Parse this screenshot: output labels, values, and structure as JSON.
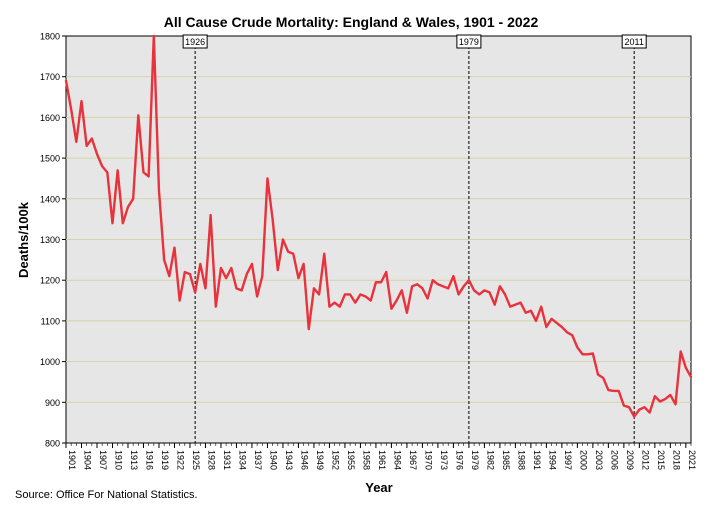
{
  "chart_data": {
    "type": "line",
    "title": "All Cause Crude Mortality: England & Wales, 1901 - 2022",
    "xlabel": "Year",
    "ylabel": "Deaths/100k",
    "source": "Source: Office For National Statistics.",
    "xlim": [
      1901,
      2022
    ],
    "ylim": [
      800,
      1800
    ],
    "y_ticks": [
      800,
      900,
      1000,
      1100,
      1200,
      1300,
      1400,
      1500,
      1600,
      1700,
      1800
    ],
    "x_ticks": [
      1901,
      1904,
      1907,
      1910,
      1913,
      1916,
      1919,
      1922,
      1925,
      1928,
      1931,
      1934,
      1937,
      1940,
      1943,
      1946,
      1949,
      1952,
      1955,
      1958,
      1961,
      1964,
      1967,
      1970,
      1973,
      1976,
      1979,
      1982,
      1985,
      1988,
      1991,
      1994,
      1997,
      2000,
      2003,
      2006,
      2009,
      2012,
      2015,
      2018,
      2021
    ],
    "markers": [
      {
        "year": 1926,
        "label": "1926"
      },
      {
        "year": 1979,
        "label": "1979"
      },
      {
        "year": 2011,
        "label": "2011"
      }
    ],
    "grid": true,
    "line_color": "#e8323c",
    "series": [
      {
        "name": "All cause crude mortality",
        "x": [
          1901,
          1902,
          1903,
          1904,
          1905,
          1906,
          1907,
          1908,
          1909,
          1910,
          1911,
          1912,
          1913,
          1914,
          1915,
          1916,
          1917,
          1918,
          1919,
          1920,
          1921,
          1922,
          1923,
          1924,
          1925,
          1926,
          1927,
          1928,
          1929,
          1930,
          1931,
          1932,
          1933,
          1934,
          1935,
          1936,
          1937,
          1938,
          1939,
          1940,
          1941,
          1942,
          1943,
          1944,
          1945,
          1946,
          1947,
          1948,
          1949,
          1950,
          1951,
          1952,
          1953,
          1954,
          1955,
          1956,
          1957,
          1958,
          1959,
          1960,
          1961,
          1962,
          1963,
          1964,
          1965,
          1966,
          1967,
          1968,
          1969,
          1970,
          1971,
          1972,
          1973,
          1974,
          1975,
          1976,
          1977,
          1978,
          1979,
          1980,
          1981,
          1982,
          1983,
          1984,
          1985,
          1986,
          1987,
          1988,
          1989,
          1990,
          1991,
          1992,
          1993,
          1994,
          1995,
          1996,
          1997,
          1998,
          1999,
          2000,
          2001,
          2002,
          2003,
          2004,
          2005,
          2006,
          2007,
          2008,
          2009,
          2010,
          2011,
          2012,
          2013,
          2014,
          2015,
          2016,
          2017,
          2018,
          2019,
          2020,
          2021,
          2022
        ],
        "values": [
          1690,
          1620,
          1540,
          1640,
          1530,
          1548,
          1510,
          1480,
          1465,
          1340,
          1470,
          1340,
          1380,
          1400,
          1605,
          1465,
          1455,
          1820,
          1420,
          1250,
          1210,
          1280,
          1150,
          1220,
          1215,
          1170,
          1240,
          1180,
          1360,
          1135,
          1230,
          1205,
          1230,
          1180,
          1175,
          1215,
          1240,
          1160,
          1210,
          1450,
          1350,
          1225,
          1300,
          1270,
          1265,
          1205,
          1240,
          1080,
          1180,
          1165,
          1265,
          1135,
          1145,
          1135,
          1165,
          1165,
          1145,
          1165,
          1160,
          1150,
          1195,
          1195,
          1220,
          1130,
          1150,
          1175,
          1120,
          1185,
          1190,
          1180,
          1155,
          1200,
          1190,
          1185,
          1180,
          1210,
          1165,
          1185,
          1200,
          1175,
          1165,
          1175,
          1170,
          1140,
          1185,
          1165,
          1135,
          1140,
          1145,
          1120,
          1125,
          1100,
          1135,
          1085,
          1105,
          1095,
          1085,
          1072,
          1065,
          1035,
          1018,
          1018,
          1020,
          968,
          960,
          930,
          928,
          928,
          892,
          888,
          865,
          882,
          888,
          875,
          915,
          902,
          908,
          918,
          895,
          1025,
          985,
          962
        ]
      }
    ]
  }
}
